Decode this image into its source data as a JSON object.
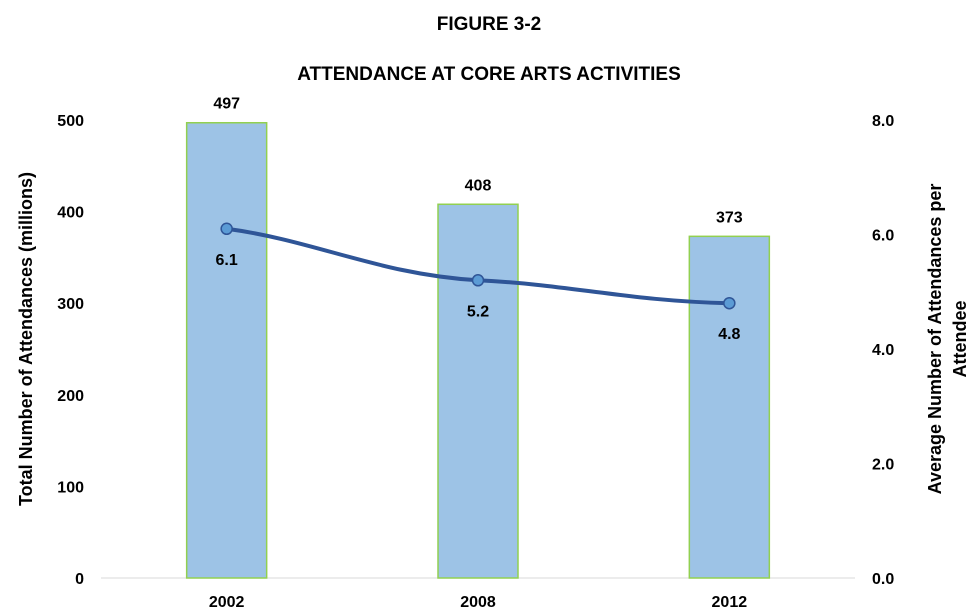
{
  "figure_label": "FIGURE 3-2",
  "chart_data": {
    "type": "bar",
    "title": "ATTENDANCE AT CORE ARTS ACTIVITIES",
    "categories": [
      "2002",
      "2008",
      "2012"
    ],
    "bar_series": {
      "values": [
        497,
        408,
        373
      ],
      "labels": [
        "497",
        "408",
        "373"
      ],
      "axis": "left",
      "color": "#9DC3E6",
      "border_color": "#92D050"
    },
    "line_series": {
      "type": "line",
      "values": [
        6.1,
        5.2,
        4.8
      ],
      "labels": [
        "6.1",
        "5.2",
        "4.8"
      ],
      "axis": "right",
      "color": "#2F5597",
      "marker_color": "#5B9BD5"
    },
    "ylabel_left": "Total Number of Attendances (millions)",
    "ylabel_right_lines": [
      "Average Number of Attendances per",
      "Attendee"
    ],
    "ylim_left": [
      0,
      500
    ],
    "yticks_left": [
      "0",
      "100",
      "200",
      "300",
      "400",
      "500"
    ],
    "ylim_right": [
      0,
      8
    ],
    "yticks_right": [
      "0.0",
      "2.0",
      "4.0",
      "6.0",
      "8.0"
    ],
    "grid": false,
    "legend": "none"
  }
}
